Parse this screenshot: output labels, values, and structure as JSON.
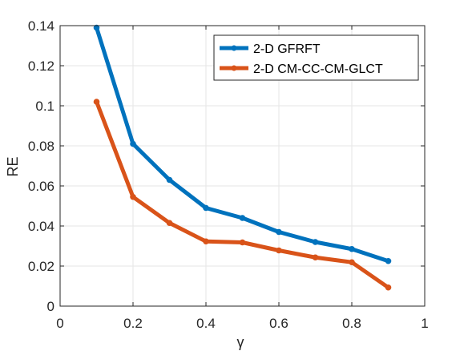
{
  "chart_data": {
    "type": "line",
    "title": "",
    "xlabel": "γ",
    "ylabel": "RE",
    "xlim": [
      0,
      1
    ],
    "ylim": [
      0,
      0.14
    ],
    "xticks": [
      "0",
      "0.2",
      "0.4",
      "0.6",
      "0.8",
      "1"
    ],
    "yticks": [
      "0",
      "0.02",
      "0.04",
      "0.06",
      "0.08",
      "0.1",
      "0.12",
      "0.14"
    ],
    "grid": true,
    "legend_position": "top-right",
    "x": [
      0.1,
      0.2,
      0.3,
      0.4,
      0.5,
      0.6,
      0.7,
      0.8,
      0.9
    ],
    "series": [
      {
        "name": "2-D GFRFT",
        "color": "#0072BD",
        "values": [
          0.139,
          0.081,
          0.063,
          0.049,
          0.044,
          0.037,
          0.032,
          0.0285,
          0.0225
        ]
      },
      {
        "name": "2-D CM-CC-CM-GLCT",
        "color": "#D95319",
        "values": [
          0.102,
          0.0545,
          0.0415,
          0.0323,
          0.0318,
          0.0278,
          0.0243,
          0.0219,
          0.0093
        ]
      }
    ]
  }
}
